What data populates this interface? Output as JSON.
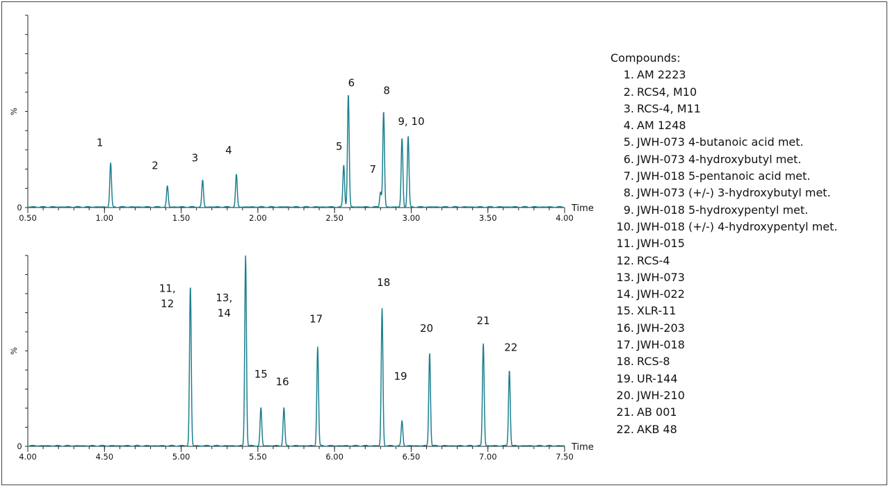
{
  "legend": {
    "title": "Compounds:",
    "items": [
      {
        "n": "1.",
        "name": "AM 2223"
      },
      {
        "n": "2.",
        "name": "RCS4, M10"
      },
      {
        "n": "3.",
        "name": "RCS-4, M11"
      },
      {
        "n": "4.",
        "name": "AM 1248"
      },
      {
        "n": "5.",
        "name": "JWH-073 4-butanoic acid met."
      },
      {
        "n": "6.",
        "name": "JWH-073 4-hydroxybutyl met."
      },
      {
        "n": "7.",
        "name": "JWH-018 5-pentanoic acid met."
      },
      {
        "n": "8.",
        "name": "JWH-073 (+/-) 3-hydroxybutyl met."
      },
      {
        "n": "9.",
        "name": "JWH-018 5-hydroxypentyl met."
      },
      {
        "n": "10.",
        "name": "JWH-018 (+/-) 4-hydroxypentyl met."
      },
      {
        "n": "11.",
        "name": "JWH-015"
      },
      {
        "n": "12.",
        "name": "RCS-4"
      },
      {
        "n": "13.",
        "name": "JWH-073"
      },
      {
        "n": "14.",
        "name": "JWH-022"
      },
      {
        "n": "15.",
        "name": "XLR-11"
      },
      {
        "n": "16.",
        "name": "JWH-203"
      },
      {
        "n": "17.",
        "name": "JWH-018"
      },
      {
        "n": "18.",
        "name": "RCS-8"
      },
      {
        "n": "19.",
        "name": "UR-144"
      },
      {
        "n": "20.",
        "name": "JWH-210"
      },
      {
        "n": "21.",
        "name": "AB 001"
      },
      {
        "n": "22.",
        "name": "AKB 48"
      }
    ]
  },
  "chart_data": [
    {
      "type": "line",
      "xlabel": "Time",
      "ylabel": "%",
      "xlim": [
        0.5,
        4.0
      ],
      "ylim": [
        0,
        100
      ],
      "xticks": [
        "0.50",
        "1.00",
        "1.50",
        "2.00",
        "2.50",
        "3.00",
        "3.50",
        "4.00"
      ],
      "yticks": [
        "0",
        "%"
      ],
      "color": "#1b7f8e",
      "peaks": [
        {
          "label": "1",
          "rt": 1.04,
          "height": 23,
          "lx": 0.97,
          "ly": 32
        },
        {
          "label": "2",
          "rt": 1.41,
          "height": 11,
          "lx": 1.33,
          "ly": 20
        },
        {
          "label": "3",
          "rt": 1.64,
          "height": 14,
          "lx": 1.59,
          "ly": 24
        },
        {
          "label": "4",
          "rt": 1.86,
          "height": 17,
          "lx": 1.81,
          "ly": 28
        },
        {
          "label": "5",
          "rt": 2.56,
          "height": 22,
          "lx": 2.53,
          "ly": 30
        },
        {
          "label": "6",
          "rt": 2.59,
          "height": 59,
          "lx": 2.61,
          "ly": 63
        },
        {
          "label": "7",
          "rt": 2.8,
          "height": 8,
          "lx": 2.75,
          "ly": 18
        },
        {
          "label": "8",
          "rt": 2.82,
          "height": 50,
          "lx": 2.84,
          "ly": 59
        },
        {
          "label": "9, 10",
          "rt": 2.94,
          "height": 36,
          "lx": 3.0,
          "ly": 43
        },
        {
          "label": "",
          "rt": 2.98,
          "height": 37,
          "lx": 2.98,
          "ly": 0
        }
      ]
    },
    {
      "type": "line",
      "xlabel": "Time",
      "ylabel": "%",
      "xlim": [
        4.0,
        7.5
      ],
      "ylim": [
        0,
        100
      ],
      "xticks": [
        "4.00",
        "4.50",
        "5.00",
        "5.50",
        "6.00",
        "6.50",
        "7.00",
        "7.50"
      ],
      "yticks": [
        "0",
        "%"
      ],
      "color": "#1b7f8e",
      "peaks": [
        {
          "label": "11,",
          "label2": "12",
          "rt": 5.06,
          "height": 84,
          "lx": 4.91,
          "ly": 81
        },
        {
          "label": "13,",
          "label2": "14",
          "rt": 5.42,
          "height": 100,
          "lx": 5.28,
          "ly": 76
        },
        {
          "label": "15",
          "rt": 5.52,
          "height": 20,
          "lx": 5.52,
          "ly": 36
        },
        {
          "label": "16",
          "rt": 5.67,
          "height": 20,
          "lx": 5.66,
          "ly": 32
        },
        {
          "label": "17",
          "rt": 5.89,
          "height": 52,
          "lx": 5.88,
          "ly": 65
        },
        {
          "label": "18",
          "rt": 6.31,
          "height": 72,
          "lx": 6.32,
          "ly": 84
        },
        {
          "label": "19",
          "rt": 6.44,
          "height": 13,
          "lx": 6.43,
          "ly": 35
        },
        {
          "label": "20",
          "rt": 6.62,
          "height": 49,
          "lx": 6.6,
          "ly": 60
        },
        {
          "label": "21",
          "rt": 6.97,
          "height": 54,
          "lx": 6.97,
          "ly": 64
        },
        {
          "label": "22",
          "rt": 7.14,
          "height": 40,
          "lx": 7.15,
          "ly": 50
        }
      ]
    }
  ]
}
